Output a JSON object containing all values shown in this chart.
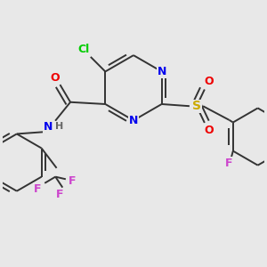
{
  "bg_color": "#e8e8e8",
  "bond_color": "#333333",
  "bond_width": 1.4,
  "atom_colors": {
    "N": "#0000ee",
    "O": "#ee0000",
    "S": "#ccaa00",
    "Cl": "#00cc00",
    "F": "#cc44cc",
    "H": "#666666",
    "C": "#333333"
  },
  "figsize": [
    3.0,
    3.0
  ],
  "dpi": 100
}
